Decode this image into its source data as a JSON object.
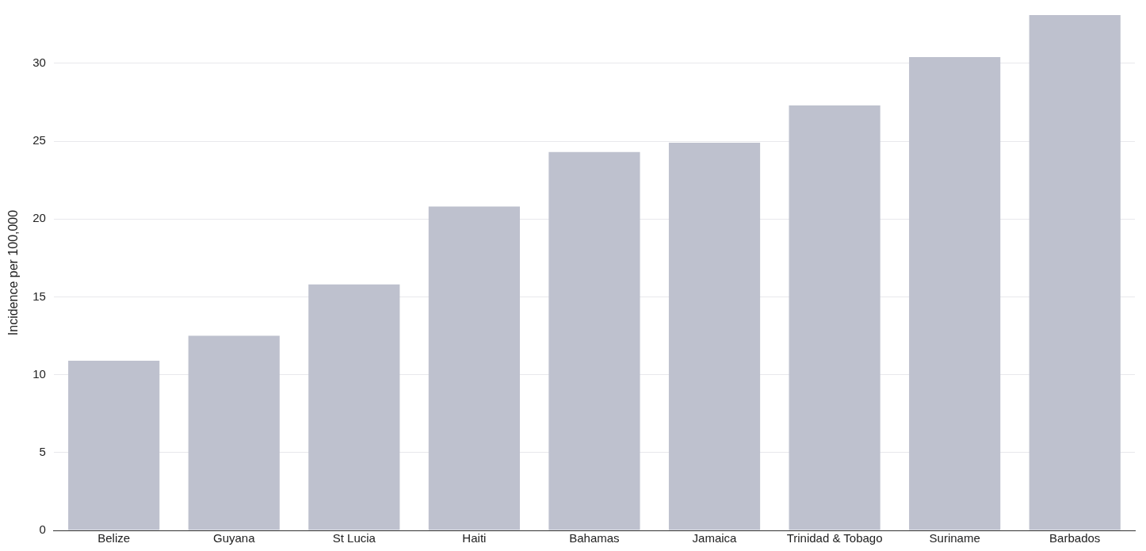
{
  "chart_data": {
    "type": "bar",
    "ylabel": "Incidence per 100,000",
    "categories": [
      "Belize",
      "Guyana",
      "St Lucia",
      "Haiti",
      "Bahamas",
      "Jamaica",
      "Trinidad & Tobago",
      "Suriname",
      "Barbados"
    ],
    "values": [
      10.9,
      12.5,
      15.8,
      20.8,
      24.3,
      24.9,
      27.3,
      30.4,
      33.1
    ],
    "color": "#bec1ce",
    "ylim": [
      0,
      33.1
    ],
    "yticks": [
      0,
      5,
      10,
      15,
      20,
      25,
      30
    ],
    "grid": "y",
    "legend": false
  }
}
